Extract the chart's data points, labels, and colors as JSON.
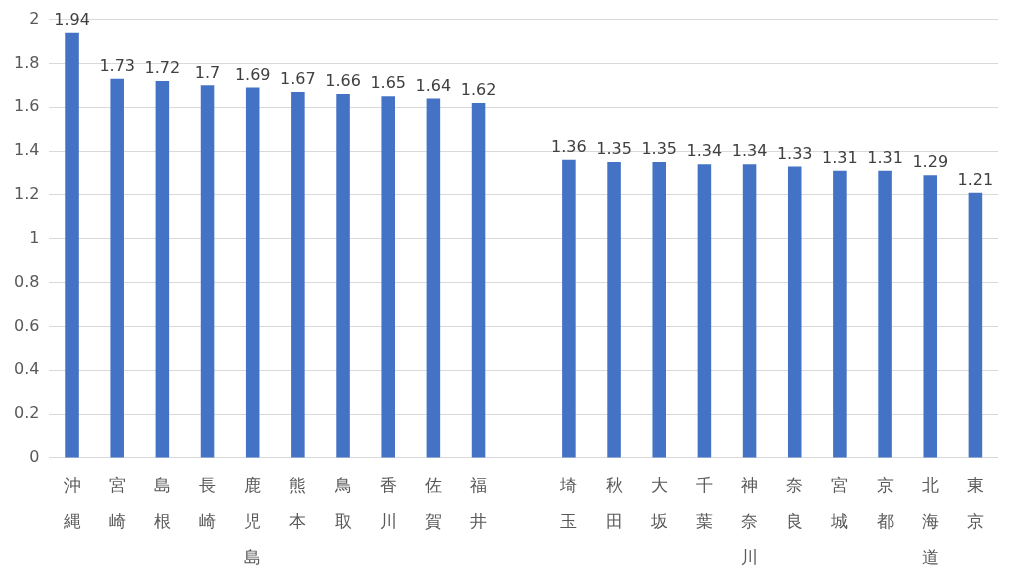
{
  "chart_data": {
    "type": "bar",
    "categories": [
      "沖縄",
      "宮崎",
      "島根",
      "長崎",
      "鹿児島",
      "熊本",
      "鳥取",
      "香川",
      "佐賀",
      "福井",
      null,
      "埼玉",
      "秋田",
      "大坂",
      "千葉",
      "神奈川",
      "奈良",
      "宮城",
      "京都",
      "北海道",
      "東京"
    ],
    "values": [
      1.94,
      1.73,
      1.72,
      1.7,
      1.69,
      1.67,
      1.66,
      1.65,
      1.64,
      1.62,
      null,
      1.36,
      1.35,
      1.35,
      1.34,
      1.34,
      1.33,
      1.31,
      1.31,
      1.29,
      1.21
    ],
    "color": "#4472c4",
    "ylim": [
      0,
      2
    ],
    "yticks": [
      0,
      0.2,
      0.4,
      0.6,
      0.8,
      1,
      1.2,
      1.4,
      1.6,
      1.8,
      2
    ],
    "grid": "y",
    "legend": false,
    "data_labels": true
  }
}
